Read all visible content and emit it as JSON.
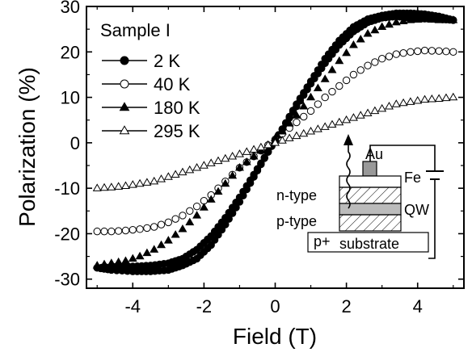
{
  "chart_data": {
    "type": "scatter",
    "title": "",
    "xlabel": "Field (T)",
    "ylabel": "Polarization (%)",
    "xlim": [
      -5.3,
      5.3
    ],
    "ylim": [
      -32,
      30
    ],
    "xticks": [
      -4,
      -2,
      0,
      2,
      4
    ],
    "yticks": [
      -30,
      -20,
      -10,
      0,
      10,
      20,
      30
    ],
    "grid": false,
    "legend_title": "Sample I",
    "legend_position": "top-left",
    "series": [
      {
        "name": "2 K",
        "marker": "filled-circle",
        "branch_up": [
          [
            -5.0,
            -27.5
          ],
          [
            -4.6,
            -28.0
          ],
          [
            -4.0,
            -28.3
          ],
          [
            -3.5,
            -28.3
          ],
          [
            -3.0,
            -28.0
          ],
          [
            -2.6,
            -27.0
          ],
          [
            -2.2,
            -25.5
          ],
          [
            -1.8,
            -22.5
          ],
          [
            -1.4,
            -18.0
          ],
          [
            -1.0,
            -13.0
          ],
          [
            -0.6,
            -7.5
          ],
          [
            -0.2,
            -2.0
          ],
          [
            0.2,
            3.0
          ],
          [
            0.6,
            8.0
          ],
          [
            1.0,
            13.0
          ],
          [
            1.4,
            17.5
          ],
          [
            1.8,
            21.5
          ],
          [
            2.2,
            24.5
          ],
          [
            2.6,
            26.5
          ],
          [
            3.0,
            27.5
          ],
          [
            3.4,
            27.8
          ],
          [
            3.8,
            27.5
          ],
          [
            4.2,
            27.3
          ],
          [
            4.6,
            27.2
          ],
          [
            5.0,
            27.0
          ]
        ],
        "branch_down": [
          [
            5.0,
            27.0
          ],
          [
            4.6,
            27.8
          ],
          [
            4.2,
            28.3
          ],
          [
            3.8,
            28.5
          ],
          [
            3.4,
            28.5
          ],
          [
            3.0,
            28.0
          ],
          [
            2.6,
            27.2
          ],
          [
            2.2,
            25.5
          ],
          [
            1.8,
            22.5
          ],
          [
            1.4,
            18.5
          ],
          [
            1.0,
            13.5
          ],
          [
            0.6,
            8.5
          ],
          [
            0.2,
            3.0
          ],
          [
            -0.2,
            -2.0
          ],
          [
            -0.6,
            -7.0
          ],
          [
            -1.0,
            -12.0
          ],
          [
            -1.4,
            -16.5
          ],
          [
            -1.8,
            -20.5
          ],
          [
            -2.2,
            -23.5
          ],
          [
            -2.6,
            -25.5
          ],
          [
            -3.0,
            -26.5
          ],
          [
            -3.5,
            -27.0
          ],
          [
            -4.0,
            -27.2
          ],
          [
            -4.5,
            -27.3
          ],
          [
            -5.0,
            -27.5
          ]
        ]
      },
      {
        "name": "40 K",
        "marker": "open-circle",
        "points": [
          [
            -5.0,
            -19.5
          ],
          [
            -4.6,
            -19.5
          ],
          [
            -4.2,
            -19.3
          ],
          [
            -3.8,
            -19.0
          ],
          [
            -3.4,
            -18.5
          ],
          [
            -3.0,
            -17.5
          ],
          [
            -2.6,
            -16.0
          ],
          [
            -2.2,
            -14.0
          ],
          [
            -1.8,
            -11.5
          ],
          [
            -1.4,
            -8.5
          ],
          [
            -1.0,
            -5.5
          ],
          [
            -0.6,
            -3.0
          ],
          [
            -0.2,
            -0.5
          ],
          [
            0.2,
            2.0
          ],
          [
            0.6,
            4.5
          ],
          [
            1.0,
            7.0
          ],
          [
            1.4,
            10.0
          ],
          [
            1.8,
            12.5
          ],
          [
            2.2,
            15.0
          ],
          [
            2.6,
            17.0
          ],
          [
            3.0,
            18.5
          ],
          [
            3.4,
            19.5
          ],
          [
            3.8,
            20.0
          ],
          [
            4.2,
            20.3
          ],
          [
            4.6,
            20.2
          ],
          [
            5.0,
            20.0
          ]
        ]
      },
      {
        "name": "180 K",
        "marker": "filled-triangle",
        "points": [
          [
            -5.0,
            -27.0
          ],
          [
            -4.6,
            -26.5
          ],
          [
            -4.2,
            -26.0
          ],
          [
            -3.8,
            -25.0
          ],
          [
            -3.4,
            -23.5
          ],
          [
            -3.0,
            -21.5
          ],
          [
            -2.6,
            -19.0
          ],
          [
            -2.2,
            -16.0
          ],
          [
            -1.8,
            -12.5
          ],
          [
            -1.4,
            -9.0
          ],
          [
            -1.0,
            -5.5
          ],
          [
            -0.6,
            -3.0
          ],
          [
            -0.2,
            -0.5
          ],
          [
            0.2,
            2.5
          ],
          [
            0.6,
            6.0
          ],
          [
            1.0,
            10.0
          ],
          [
            1.4,
            14.0
          ],
          [
            1.8,
            18.0
          ],
          [
            2.2,
            21.5
          ],
          [
            2.6,
            24.0
          ],
          [
            3.0,
            25.5
          ],
          [
            3.4,
            26.5
          ],
          [
            3.8,
            27.0
          ],
          [
            4.2,
            27.2
          ],
          [
            4.6,
            27.0
          ],
          [
            5.0,
            27.0
          ]
        ]
      },
      {
        "name": "295 K",
        "marker": "open-triangle",
        "points": [
          [
            -5.0,
            -10.0
          ],
          [
            -4.6,
            -9.8
          ],
          [
            -4.2,
            -9.5
          ],
          [
            -3.8,
            -9.0
          ],
          [
            -3.4,
            -8.5
          ],
          [
            -3.0,
            -7.5
          ],
          [
            -2.6,
            -6.5
          ],
          [
            -2.2,
            -5.5
          ],
          [
            -1.8,
            -4.5
          ],
          [
            -1.4,
            -3.5
          ],
          [
            -1.0,
            -2.5
          ],
          [
            -0.6,
            -1.5
          ],
          [
            -0.2,
            -0.5
          ],
          [
            0.2,
            0.5
          ],
          [
            0.6,
            1.5
          ],
          [
            1.0,
            2.5
          ],
          [
            1.4,
            3.5
          ],
          [
            1.8,
            4.5
          ],
          [
            2.2,
            5.5
          ],
          [
            2.6,
            6.5
          ],
          [
            3.0,
            7.5
          ],
          [
            3.4,
            8.5
          ],
          [
            3.8,
            9.0
          ],
          [
            4.2,
            9.5
          ],
          [
            4.6,
            9.7
          ],
          [
            5.0,
            10.0
          ]
        ]
      }
    ],
    "inset": {
      "labels": {
        "au": "Au",
        "fe": "Fe",
        "n_type": "n-type",
        "p_type": "p-type",
        "qw": "QW",
        "p_plus": "p+",
        "substrate": "substrate"
      }
    }
  }
}
